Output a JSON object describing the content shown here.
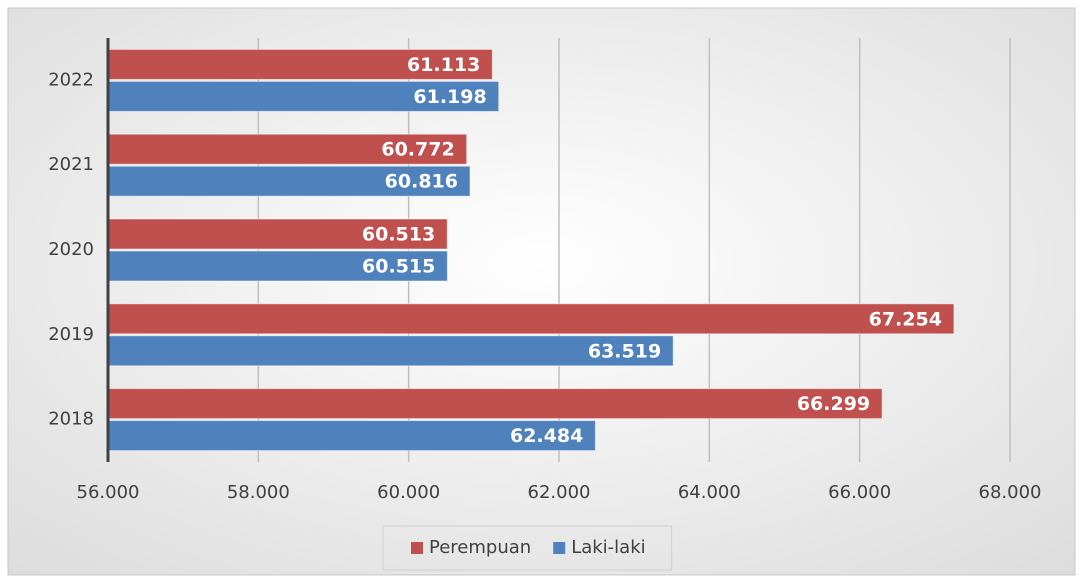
{
  "chart_data": {
    "type": "hbar",
    "categories": [
      "2022",
      "2021",
      "2020",
      "2019",
      "2018"
    ],
    "series": [
      {
        "name": "Perempuan",
        "color": "#c0504d",
        "values": [
          61113,
          60772,
          60513,
          67254,
          66299
        ],
        "value_labels": [
          "61.113",
          "60.772",
          "60.513",
          "67.254",
          "66.299"
        ]
      },
      {
        "name": "Laki-laki",
        "color": "#4f81bd",
        "values": [
          61198,
          60816,
          60515,
          63519,
          62484
        ],
        "value_labels": [
          "61.198",
          "60.816",
          "60.515",
          "63.519",
          "62.484"
        ]
      }
    ],
    "xlim": [
      56000,
      68000
    ],
    "xticks": [
      {
        "value": 56000,
        "label": "56.000"
      },
      {
        "value": 58000,
        "label": "58.000"
      },
      {
        "value": 60000,
        "label": "60.000"
      },
      {
        "value": 62000,
        "label": "62.000"
      },
      {
        "value": 64000,
        "label": "64.000"
      },
      {
        "value": 66000,
        "label": "66.000"
      },
      {
        "value": 68000,
        "label": "68.000"
      }
    ],
    "grid": true,
    "legend": "bottom"
  }
}
